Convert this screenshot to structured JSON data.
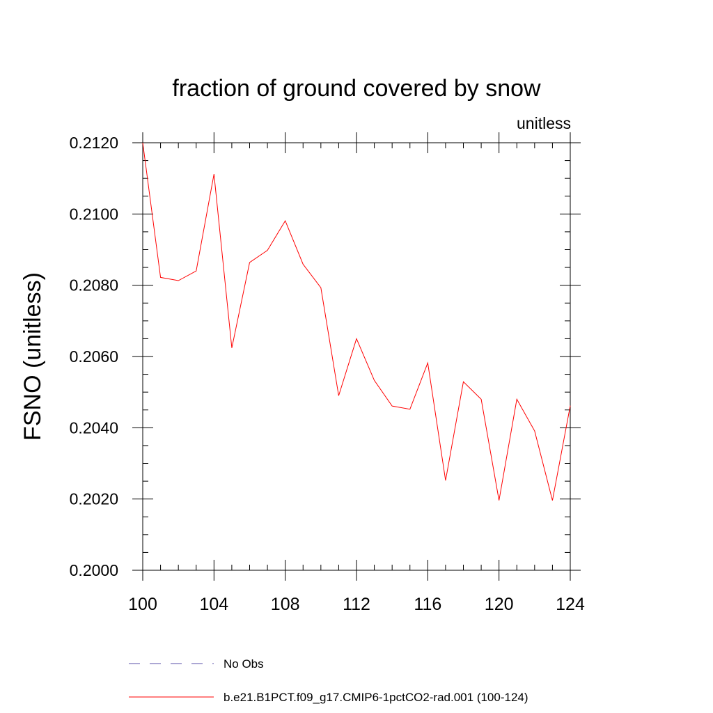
{
  "chart_data": {
    "type": "line",
    "title": "fraction of ground covered by snow",
    "units_label": "unitless",
    "ylabel": "FSNO  (unitless)",
    "xlabel": "",
    "xlim": [
      100,
      124
    ],
    "ylim": [
      0.2,
      0.212
    ],
    "x_ticks": [
      {
        "value": 100,
        "label": "100"
      },
      {
        "value": 104,
        "label": "104"
      },
      {
        "value": 108,
        "label": "108"
      },
      {
        "value": 112,
        "label": "112"
      },
      {
        "value": 116,
        "label": "116"
      },
      {
        "value": 120,
        "label": "120"
      },
      {
        "value": 124,
        "label": "124"
      }
    ],
    "y_ticks": [
      {
        "value": 0.2,
        "label": "0.2000"
      },
      {
        "value": 0.202,
        "label": "0.2020"
      },
      {
        "value": 0.204,
        "label": "0.2040"
      },
      {
        "value": 0.206,
        "label": "0.2060"
      },
      {
        "value": 0.208,
        "label": "0.2080"
      },
      {
        "value": 0.21,
        "label": "0.2100"
      },
      {
        "value": 0.212,
        "label": "0.2120"
      }
    ],
    "grid": false,
    "legend_position": "bottom",
    "series": [
      {
        "name": "No Obs",
        "color": "#5a4fa8",
        "dash": "dashed",
        "x": [],
        "values": []
      },
      {
        "name": "b.e21.B1PCT.f09_g17.CMIP6-1pctCO2-rad.001 (100-124)",
        "color": "#ff0000",
        "dash": "solid",
        "x": [
          100,
          101,
          102,
          103,
          104,
          105,
          106,
          107,
          108,
          109,
          110,
          111,
          112,
          113,
          114,
          115,
          116,
          117,
          118,
          119,
          120,
          121,
          122,
          123,
          124
        ],
        "values": [
          0.212,
          0.20822,
          0.20813,
          0.2084,
          0.21112,
          0.20624,
          0.20864,
          0.20898,
          0.20981,
          0.20859,
          0.20793,
          0.2049,
          0.2065,
          0.20533,
          0.20461,
          0.20452,
          0.20582,
          0.20252,
          0.20529,
          0.2048,
          0.20196,
          0.2048,
          0.20391,
          0.20196,
          0.20462
        ]
      }
    ]
  }
}
